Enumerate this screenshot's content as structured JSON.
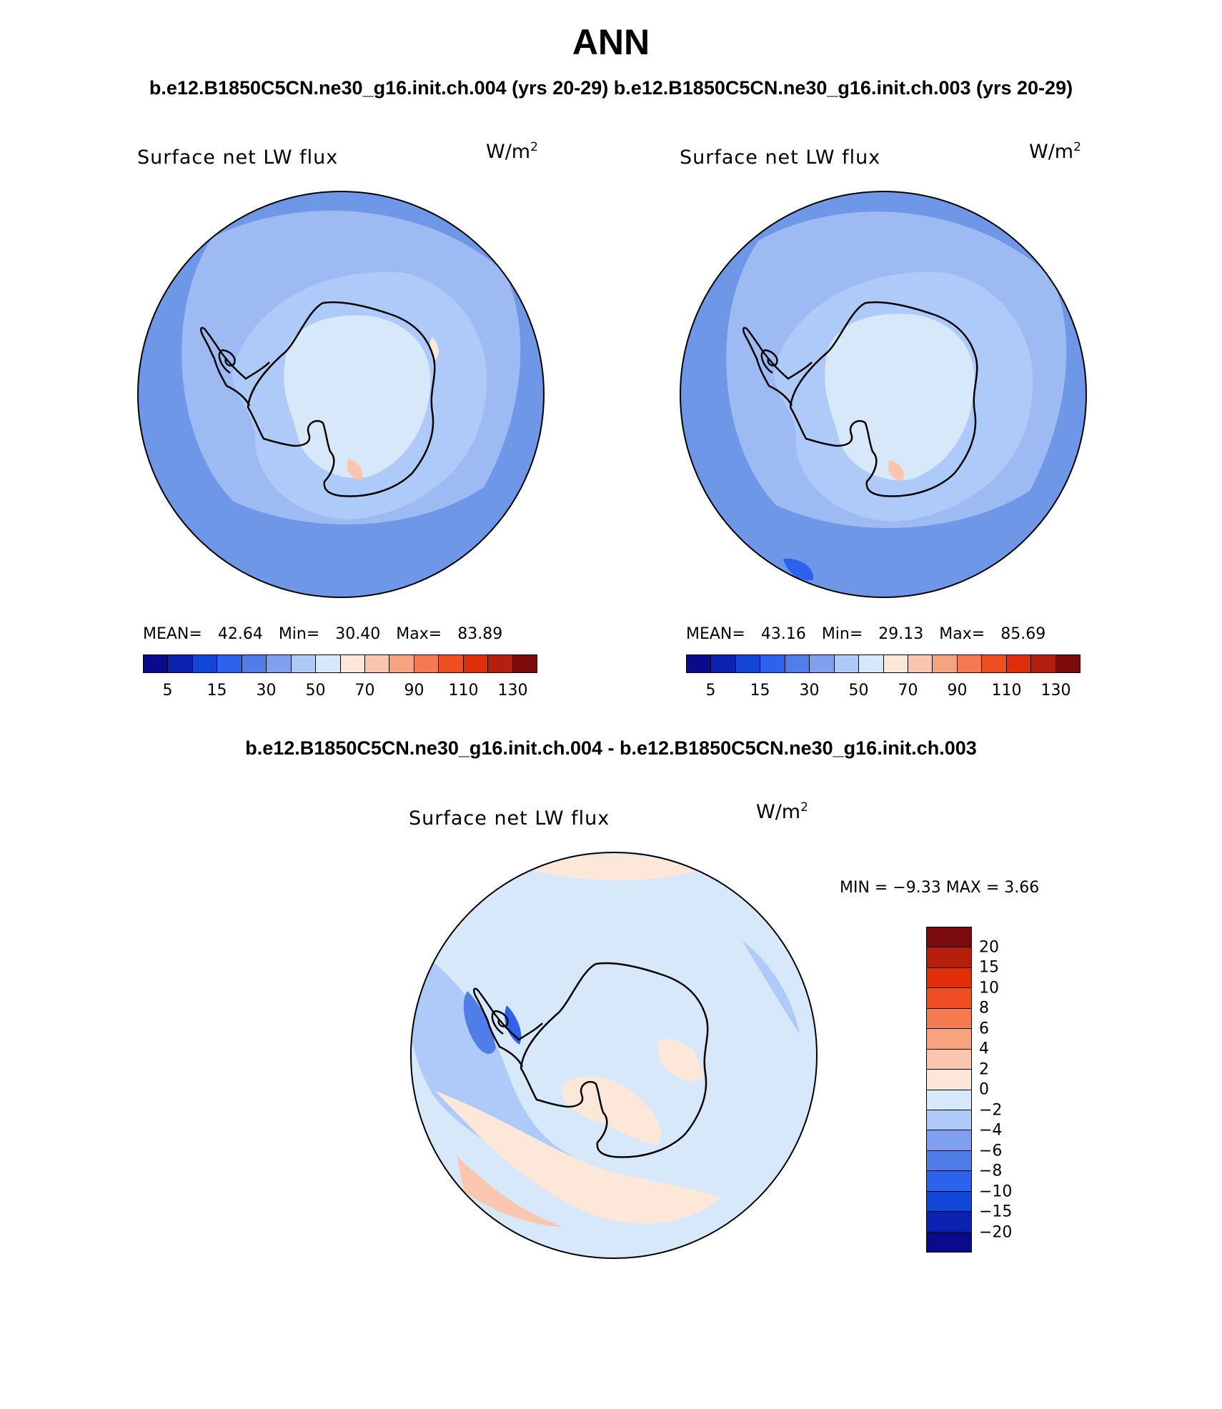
{
  "page_title": "ANN",
  "case_titles": "b.e12.B1850C5CN.ne30_g16.init.ch.004 (yrs 20-29)  b.e12.B1850C5CN.ne30_g16.init.ch.003 (yrs 20-29)",
  "colors": {
    "land_outline": "#000000",
    "ocean_base": "#6e97e8",
    "ice_light": "#d8e8fb"
  },
  "panels": {
    "left": {
      "title": "Surface net LW flux",
      "units_base": "W/m",
      "units_exp": "2",
      "stats": {
        "mean_label": "MEAN=",
        "mean": "42.64",
        "min_label": "Min=",
        "min": "30.40",
        "max_label": "Max=",
        "max": "83.89"
      },
      "colorbar_labels": [
        "5",
        "15",
        "30",
        "50",
        "70",
        "90",
        "110",
        "130"
      ]
    },
    "right": {
      "title": "Surface net LW flux",
      "units_base": "W/m",
      "units_exp": "2",
      "stats": {
        "mean_label": "MEAN=",
        "mean": "43.16",
        "min_label": "Min=",
        "min": "29.13",
        "max_label": "Max=",
        "max": "85.69"
      },
      "colorbar_labels": [
        "5",
        "15",
        "30",
        "50",
        "70",
        "90",
        "110",
        "130"
      ]
    }
  },
  "abs_colorbar": {
    "levels": [
      5,
      15,
      30,
      50,
      70,
      90,
      110,
      130
    ],
    "colors": [
      "#0a0b8c",
      "#0a22b0",
      "#1246d6",
      "#2d62ee",
      "#4f7ee8",
      "#7ea0ee",
      "#aecaf8",
      "#d7e8fb",
      "#fde7d8",
      "#fbc6b0",
      "#f8a380",
      "#f67a4f",
      "#f04e22",
      "#e02f08",
      "#b51f0e",
      "#7b0a0a"
    ]
  },
  "diff": {
    "title": "b.e12.B1850C5CN.ne30_g16.init.ch.004 - b.e12.B1850C5CN.ne30_g16.init.ch.003",
    "panel_title": "Surface net LW flux",
    "units_base": "W/m",
    "units_exp": "2",
    "minmax_label": "MIN =   −9.33 MAX =    3.66",
    "colorbar_labels": [
      "20",
      "15",
      "10",
      "8",
      "6",
      "4",
      "2",
      "0",
      "−2",
      "−4",
      "−6",
      "−8",
      "−10",
      "−15",
      "−20"
    ],
    "colorbar_colors": [
      "#7b0a0a",
      "#b51f0e",
      "#e02f08",
      "#f04e22",
      "#f67a4f",
      "#f8a380",
      "#fbc6b0",
      "#fde7d8",
      "#d7e8fb",
      "#aecaf8",
      "#7ea0ee",
      "#4f7ee8",
      "#2d62ee",
      "#1246d6",
      "#0a22b0",
      "#0a0b8c"
    ]
  }
}
